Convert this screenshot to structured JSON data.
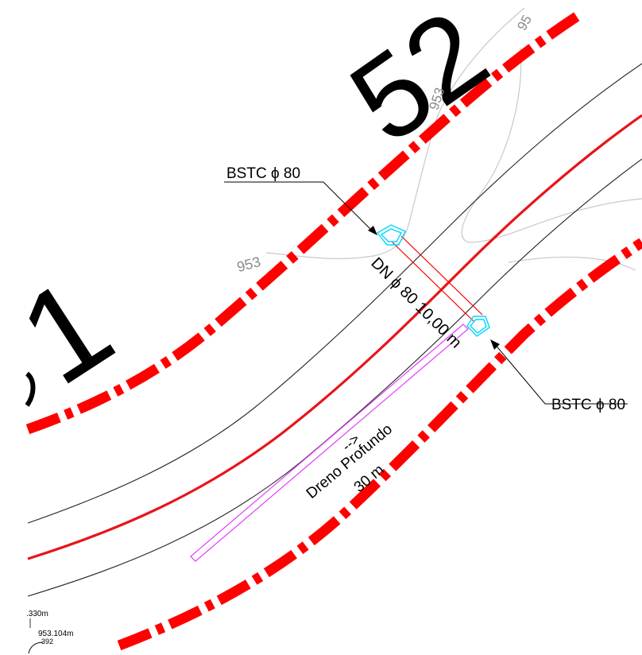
{
  "station_labels": {
    "top": "52",
    "left": "1"
  },
  "contour_labels": {
    "left": "953",
    "mid": "953",
    "top": "95"
  },
  "culvert": {
    "label_top": "BSTC ϕ 80",
    "label_right": "BSTC ϕ 80",
    "pipe_label": "DN ϕ 80 10,00 m"
  },
  "drain": {
    "arrow": "-->",
    "name": "Dreno Profundo",
    "length": "30 m"
  },
  "elevations": {
    "e1": ".330m",
    "e2": "953.104m",
    "e3": "392"
  },
  "colors": {
    "edge_dashed": "#ff0000",
    "centerline": "#e8141b",
    "road_edge": "#222222",
    "contour": "#bdbdbd",
    "headwall": "#00e5ff",
    "pipe": "#ff0000",
    "drain": "#e040fb"
  }
}
